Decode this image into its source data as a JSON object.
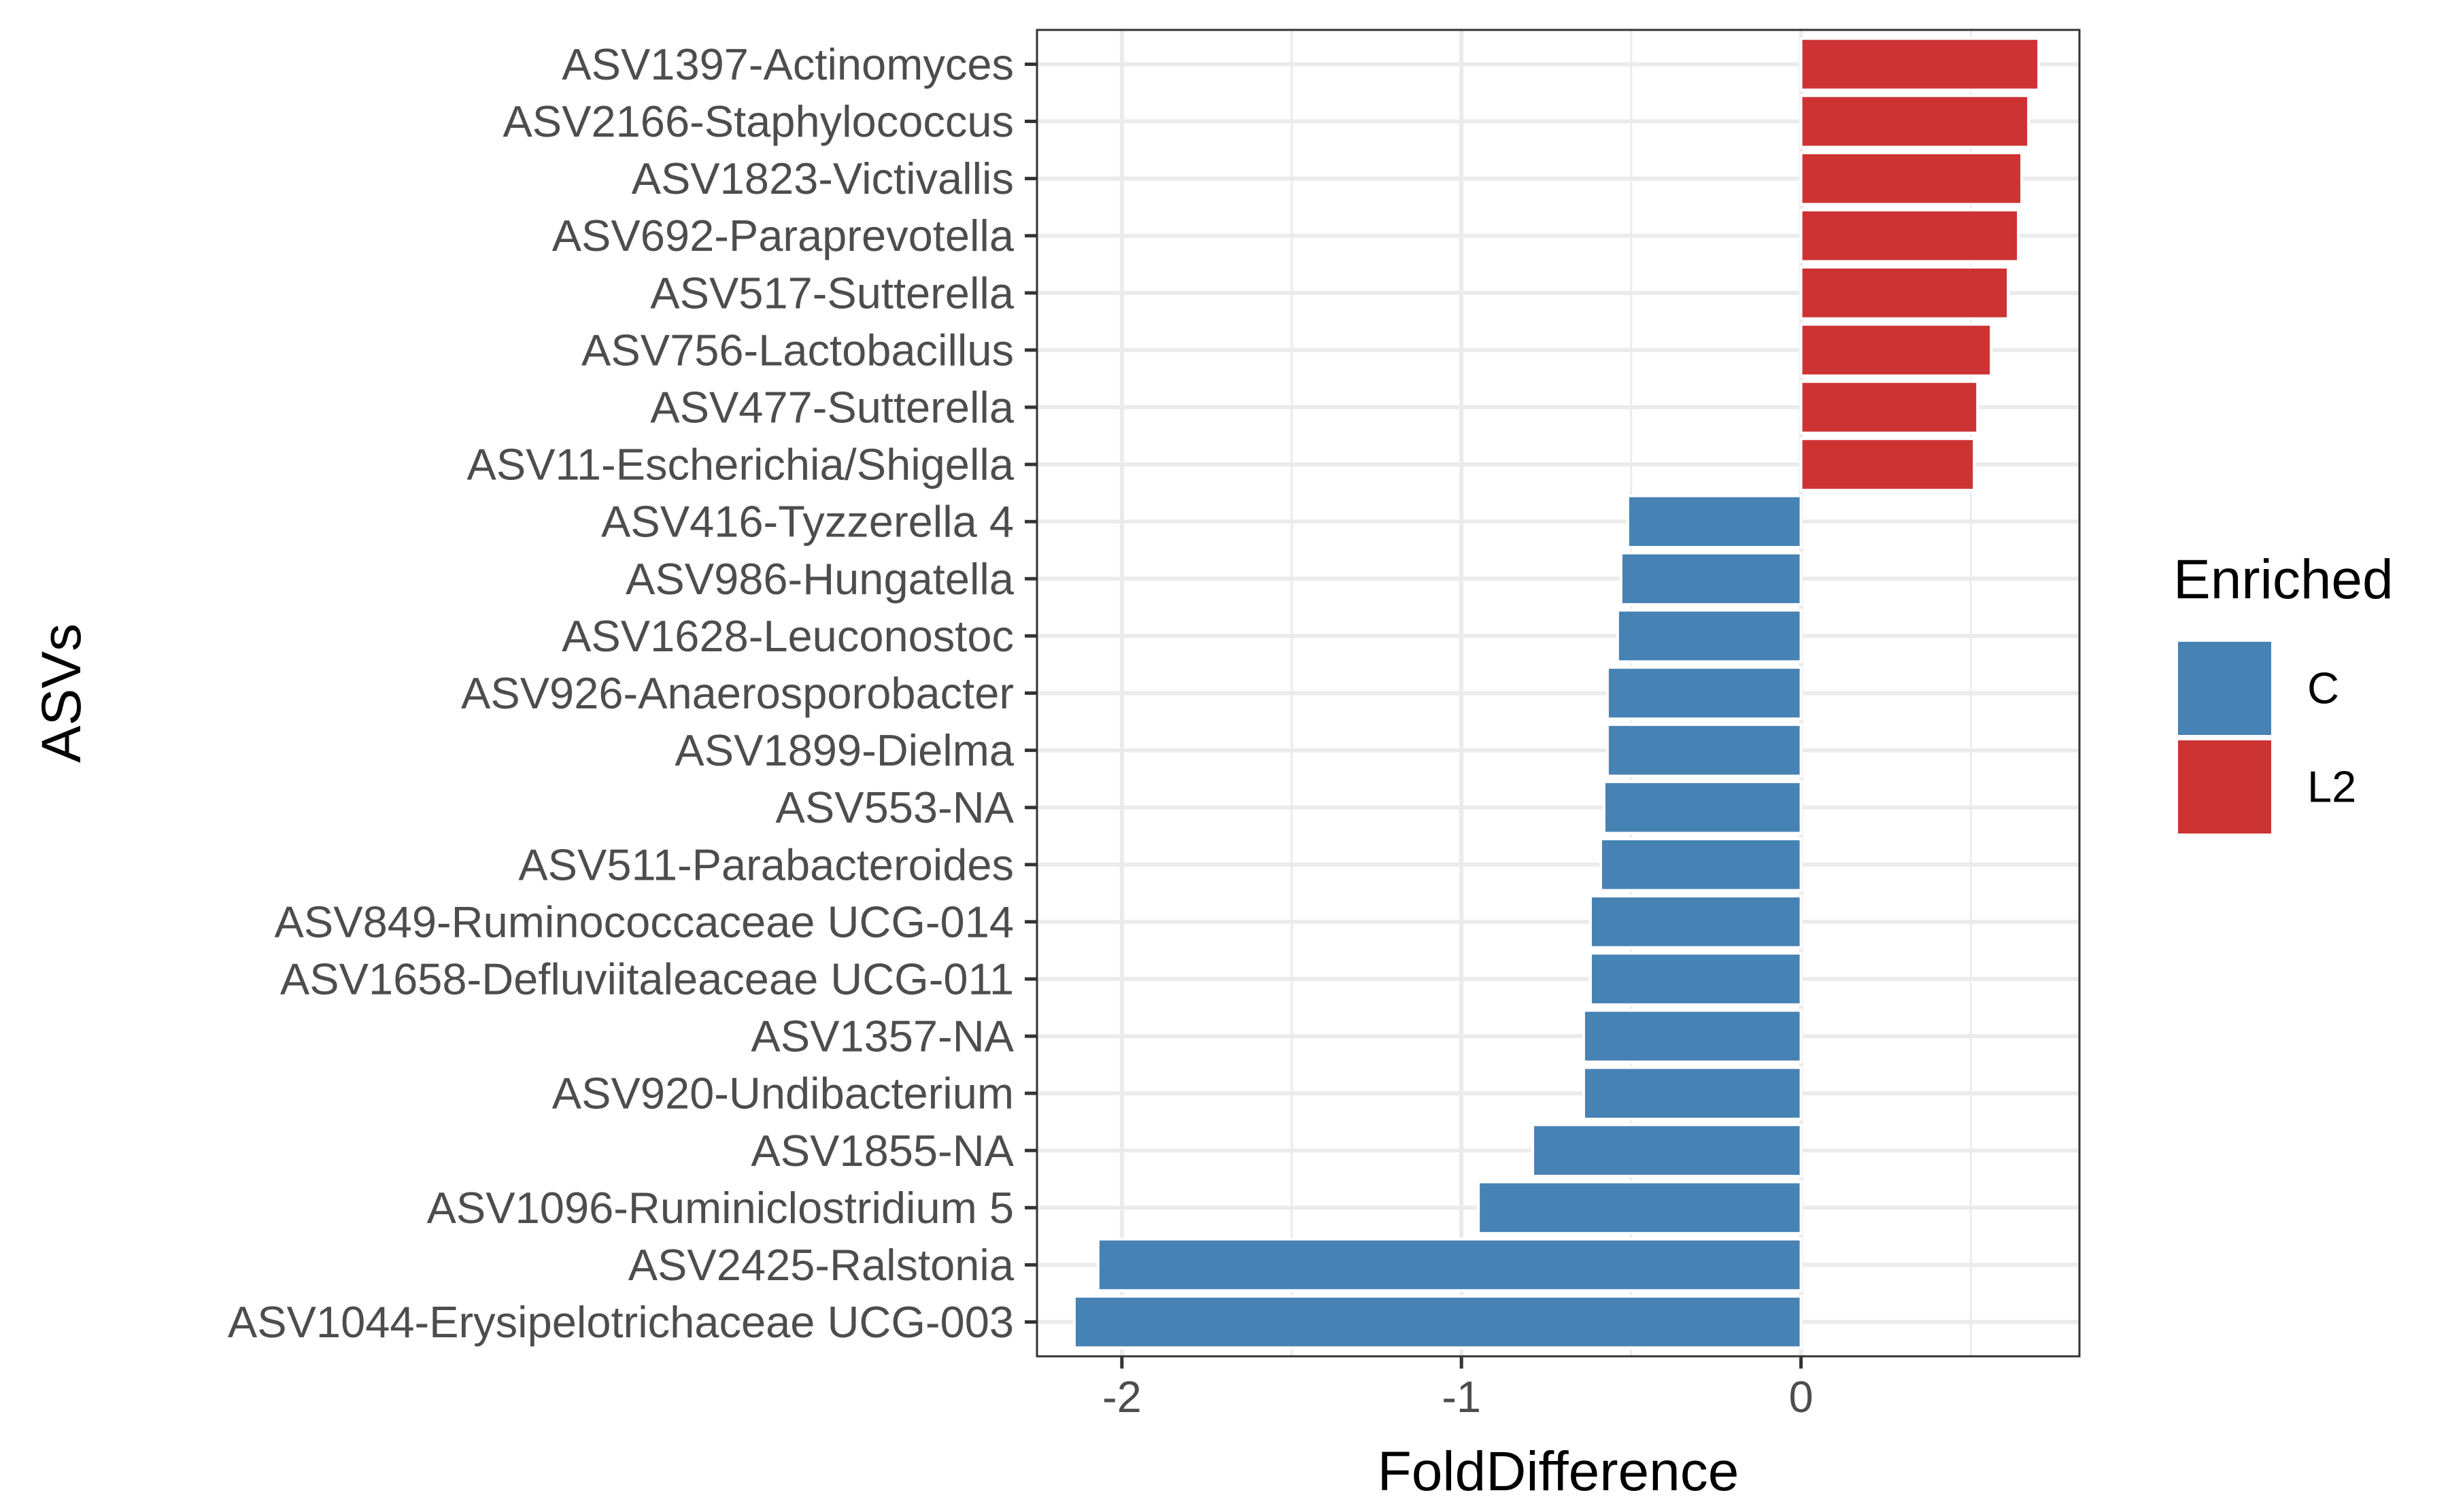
{
  "chart_data": {
    "type": "bar",
    "orientation": "horizontal",
    "title": "",
    "xlabel": "FoldDifference",
    "ylabel": "ASVs",
    "xlim": [
      -2.25,
      0.82
    ],
    "xticks": [
      -2,
      -1,
      0
    ],
    "grid": true,
    "legend": {
      "title": "Enriched",
      "placement": "right",
      "entries": [
        {
          "label": "C",
          "color": "#4682b4"
        },
        {
          "label": "L2",
          "color": "#cd3333"
        }
      ]
    },
    "categories": [
      "ASV1397-Actinomyces",
      "ASV2166-Staphylococcus",
      "ASV1823-Victivallis",
      "ASV692-Paraprevotella",
      "ASV517-Sutterella",
      "ASV756-Lactobacillus",
      "ASV477-Sutterella",
      "ASV11-Escherichia/Shigella",
      "ASV416-Tyzzerella 4",
      "ASV986-Hungatella",
      "ASV1628-Leuconostoc",
      "ASV926-Anaerosporobacter",
      "ASV1899-Dielma",
      "ASV553-NA",
      "ASV511-Parabacteroides",
      "ASV849-Ruminococcaceae UCG-014",
      "ASV1658-Defluviitaleaceae UCG-011",
      "ASV1357-NA",
      "ASV920-Undibacterium",
      "ASV1855-NA",
      "ASV1096-Ruminiclostridium 5",
      "ASV2425-Ralstonia",
      "ASV1044-Erysipelotrichaceae UCG-003"
    ],
    "values": [
      0.7,
      0.67,
      0.65,
      0.64,
      0.61,
      0.56,
      0.52,
      0.51,
      -0.51,
      -0.53,
      -0.54,
      -0.57,
      -0.57,
      -0.58,
      -0.59,
      -0.62,
      -0.62,
      -0.64,
      -0.64,
      -0.79,
      -0.95,
      -2.07,
      -2.14
    ],
    "groups": [
      "L2",
      "L2",
      "L2",
      "L2",
      "L2",
      "L2",
      "L2",
      "L2",
      "C",
      "C",
      "C",
      "C",
      "C",
      "C",
      "C",
      "C",
      "C",
      "C",
      "C",
      "C",
      "C",
      "C",
      "C"
    ]
  }
}
